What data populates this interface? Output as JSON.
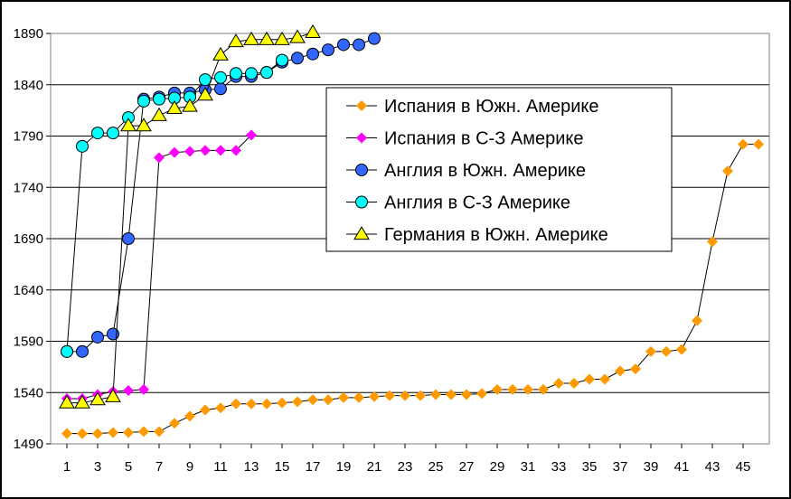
{
  "chart_data": {
    "type": "line",
    "title": "",
    "xlabel": "",
    "ylabel": "",
    "ylim": [
      1490,
      1890
    ],
    "yticks": [
      1490,
      1540,
      1590,
      1640,
      1690,
      1740,
      1790,
      1840,
      1890
    ],
    "xlim": [
      1,
      46
    ],
    "xticks": [
      1,
      3,
      5,
      7,
      9,
      11,
      13,
      15,
      17,
      19,
      21,
      23,
      25,
      27,
      29,
      31,
      33,
      35,
      37,
      39,
      41,
      43,
      45
    ],
    "grid": "horizontal",
    "legend_position": "center-right",
    "series": [
      {
        "name": "Испания в Южн. Америке",
        "color": "#ff9900",
        "marker": "diamond",
        "x": [
          1,
          2,
          3,
          4,
          5,
          6,
          7,
          8,
          9,
          10,
          11,
          12,
          13,
          14,
          15,
          16,
          17,
          18,
          19,
          20,
          21,
          22,
          23,
          24,
          25,
          26,
          27,
          28,
          29,
          30,
          31,
          32,
          33,
          34,
          35,
          36,
          37,
          38,
          39,
          40,
          41,
          42,
          43,
          44,
          45,
          46
        ],
        "y": [
          1500,
          1500,
          1500,
          1501,
          1501,
          1502,
          1502,
          1510,
          1517,
          1523,
          1525,
          1529,
          1529,
          1529,
          1530,
          1531,
          1533,
          1533,
          1535,
          1535,
          1536,
          1537,
          1537,
          1537,
          1538,
          1538,
          1538,
          1539,
          1543,
          1543,
          1543,
          1543,
          1549,
          1549,
          1553,
          1553,
          1561,
          1563,
          1580,
          1580,
          1582,
          1610,
          1687,
          1756,
          1782,
          1782
        ]
      },
      {
        "name": "Испания в С-З Америке",
        "color": "#ff00ff",
        "marker": "diamond",
        "x": [
          1,
          2,
          3,
          4,
          5,
          6,
          7,
          8,
          9,
          10,
          11,
          12,
          13
        ],
        "y": [
          1534,
          1534,
          1538,
          1541,
          1542,
          1543,
          1769,
          1774,
          1775,
          1776,
          1776,
          1776,
          1791
        ]
      },
      {
        "name": "Англия в Южн. Америке",
        "color": "#3366ff",
        "marker": "circle",
        "x": [
          1,
          2,
          3,
          4,
          5,
          6,
          7,
          8,
          9,
          10,
          11,
          12,
          13,
          14,
          15,
          16,
          17,
          18,
          19,
          20,
          21
        ],
        "y": [
          1580,
          1580,
          1594,
          1597,
          1690,
          1826,
          1828,
          1832,
          1832,
          1835,
          1836,
          1848,
          1848,
          1852,
          1862,
          1866,
          1870,
          1874,
          1879,
          1879,
          1885
        ]
      },
      {
        "name": "Англия в С-З Америке",
        "color": "#00ffff",
        "marker": "circle",
        "x": [
          1,
          2,
          3,
          4,
          5,
          6,
          7,
          8,
          9,
          10,
          11,
          12,
          13,
          14,
          15
        ],
        "y": [
          1580,
          1780,
          1793,
          1793,
          1808,
          1824,
          1826,
          1827,
          1828,
          1845,
          1847,
          1851,
          1851,
          1852,
          1864
        ]
      },
      {
        "name": "Германия в Южн. Америке",
        "color": "#ffff00",
        "marker": "triangle",
        "x": [
          1,
          2,
          3,
          4,
          5,
          6,
          7,
          8,
          9,
          10,
          11,
          12,
          13,
          14,
          15,
          16,
          17
        ],
        "y": [
          1530,
          1530,
          1533,
          1536,
          1800,
          1800,
          1810,
          1817,
          1819,
          1830,
          1869,
          1882,
          1884,
          1884,
          1884,
          1886,
          1891
        ]
      }
    ]
  }
}
